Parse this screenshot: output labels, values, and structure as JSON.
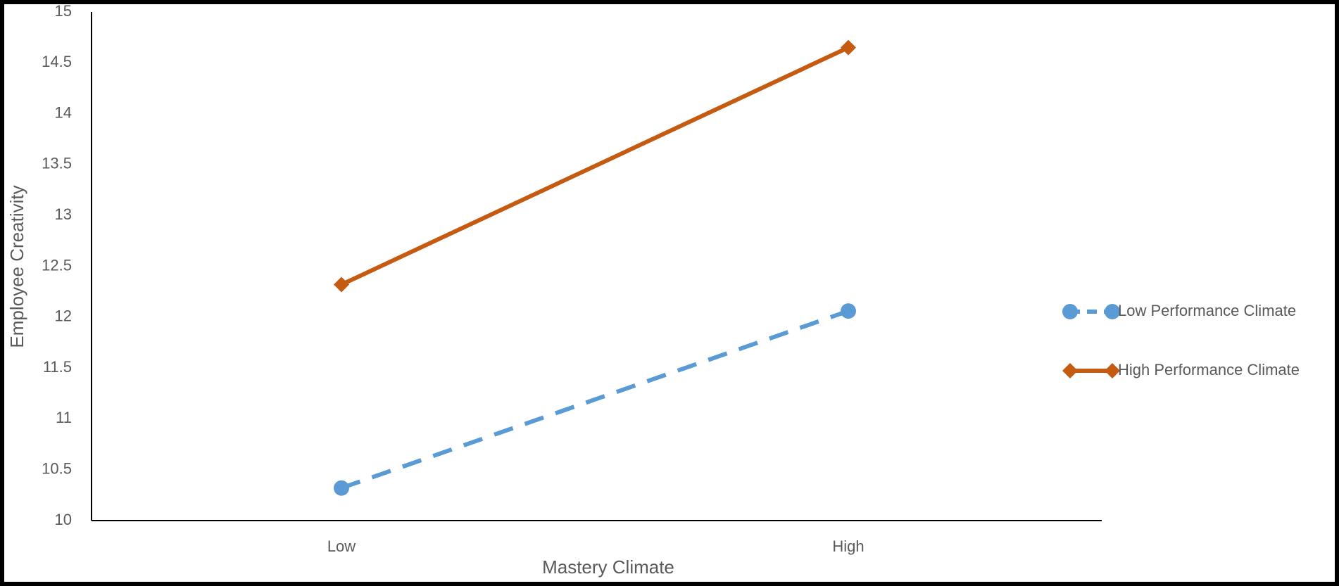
{
  "chart_data": {
    "type": "line",
    "x_label": "Mastery Climate",
    "y_label": "Employee Creativity",
    "categories": [
      "Low",
      "High"
    ],
    "series": [
      {
        "name": "Low Performance Climate",
        "color": "#5b9bd5",
        "line_style": "dashed",
        "marker": "circle",
        "values": [
          10.32,
          12.06
        ]
      },
      {
        "name": "High Performance Climate",
        "color": "#c55a11",
        "line_style": "solid",
        "marker": "diamond",
        "values": [
          12.32,
          14.65
        ]
      }
    ],
    "ylim": [
      10,
      15
    ],
    "yticks": [
      10,
      10.5,
      11,
      11.5,
      12,
      12.5,
      13,
      13.5,
      14,
      14.5,
      15
    ],
    "grid": false,
    "legend": "right"
  }
}
